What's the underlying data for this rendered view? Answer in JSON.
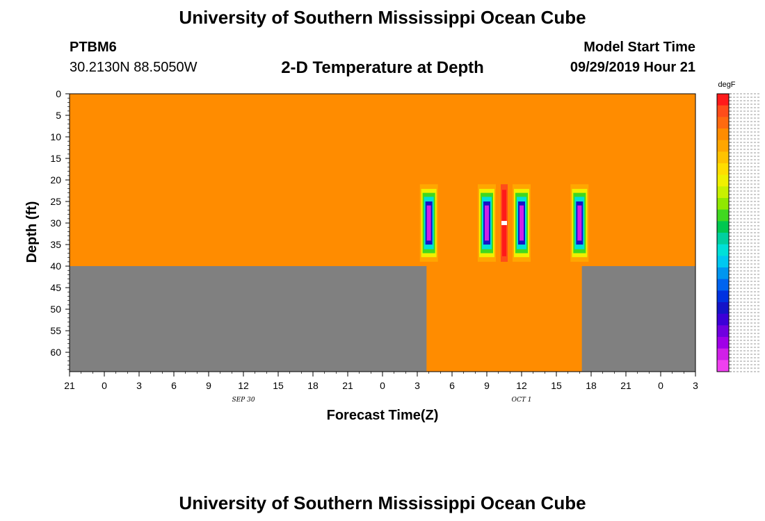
{
  "header": {
    "title_top": "University of Southern Mississippi Ocean Cube",
    "station": "PTBM6",
    "coordinates": "30.2130N 88.5050W",
    "model_start_label": "Model Start Time",
    "model_start_value": "09/29/2019 Hour 21",
    "title_bottom": "University of Southern Mississippi Ocean Cube"
  },
  "chart_data": {
    "type": "heatmap",
    "title": "2-D Temperature at Depth",
    "xlabel": "Forecast Time(Z)",
    "ylabel": "Depth (ft)",
    "x_ticks": [
      "21",
      "0",
      "3",
      "6",
      "9",
      "12",
      "15",
      "18",
      "21",
      "0",
      "3",
      "6",
      "9",
      "12",
      "15",
      "18",
      "21",
      "0",
      "3"
    ],
    "x_range_hours": [
      0,
      54
    ],
    "x_date_labels": [
      {
        "text": "SEP 30",
        "hour": 15
      },
      {
        "text": "OCT 1",
        "hour": 39
      }
    ],
    "y_ticks": [
      0,
      5,
      10,
      15,
      20,
      25,
      30,
      35,
      40,
      45,
      50,
      55,
      60
    ],
    "y_range_ft": [
      0,
      64.5
    ],
    "background_value_color": "#ff8c00",
    "no_data_color": "#808080",
    "data_depth_bottom_ft": 40,
    "deep_data_hours": [
      30.8,
      44.2
    ],
    "anomalies": [
      {
        "center_hour": 31.0,
        "depth_top_ft": 21,
        "depth_bottom_ft": 39,
        "type": "cold"
      },
      {
        "center_hour": 36.0,
        "depth_top_ft": 21,
        "depth_bottom_ft": 39,
        "type": "cold"
      },
      {
        "center_hour": 37.5,
        "depth_top_ft": 21,
        "depth_bottom_ft": 39,
        "type": "warm"
      },
      {
        "center_hour": 39.0,
        "depth_top_ft": 21,
        "depth_bottom_ft": 39,
        "type": "cold"
      },
      {
        "center_hour": 44.0,
        "depth_top_ft": 21,
        "depth_bottom_ft": 39,
        "type": "cold"
      }
    ],
    "colorbar": {
      "unit": "degF",
      "colors": [
        "#ff1a1a",
        "#ff4d1a",
        "#ff6a10",
        "#ff8c00",
        "#ffa600",
        "#ffc200",
        "#ffdd00",
        "#f0f000",
        "#c8f000",
        "#90e800",
        "#40d820",
        "#00c850",
        "#00d0a0",
        "#00e0d8",
        "#00c8f0",
        "#0096f0",
        "#0064f0",
        "#0032e0",
        "#1414c8",
        "#3c00d8",
        "#7000e0",
        "#a000e8",
        "#d020e8",
        "#f040f0"
      ]
    }
  }
}
